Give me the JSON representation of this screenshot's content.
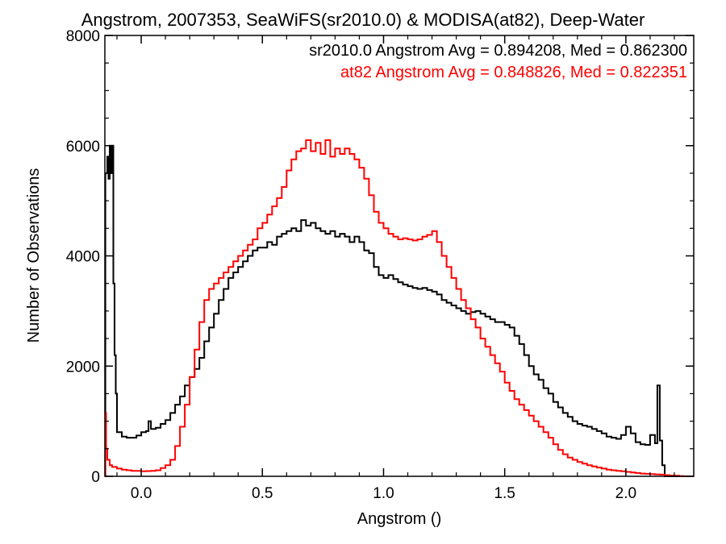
{
  "chart_data": {
    "type": "line",
    "step": true,
    "title": "Angstrom, 2007353, SeaWiFS(sr2010.0) & MODISA(at82), Deep-Water",
    "xlabel": "Angstrom ()",
    "ylabel": "Number of Observations",
    "xlim": [
      -0.15,
      2.28
    ],
    "ylim": [
      0,
      8000
    ],
    "xticks": [
      0.0,
      0.5,
      1.0,
      1.5,
      2.0
    ],
    "xtick_labels": [
      "0.0",
      "0.5",
      "1.0",
      "1.5",
      "2.0"
    ],
    "yticks": [
      0,
      2000,
      4000,
      6000,
      8000
    ],
    "ytick_labels": [
      "0",
      "2000",
      "4000",
      "6000",
      "8000"
    ],
    "grid": false,
    "legend": "top-right",
    "annotations": [
      {
        "text": "sr2010.0 Angstrom Avg = 0.894208, Med = 0.862300",
        "color": "#000000"
      },
      {
        "text": "at82 Angstrom Avg = 0.848826, Med = 0.822351",
        "color": "#ff0000"
      }
    ],
    "series": [
      {
        "name": "sr2010.0",
        "color": "#000000",
        "points": [
          [
            -0.15,
            0
          ],
          [
            -0.148,
            5500
          ],
          [
            -0.14,
            5800
          ],
          [
            -0.135,
            5400
          ],
          [
            -0.13,
            6000
          ],
          [
            -0.125,
            5500
          ],
          [
            -0.12,
            6000
          ],
          [
            -0.115,
            3500
          ],
          [
            -0.11,
            2200
          ],
          [
            -0.105,
            1500
          ],
          [
            -0.1,
            800
          ],
          [
            -0.08,
            720
          ],
          [
            -0.06,
            700
          ],
          [
            -0.04,
            700
          ],
          [
            -0.02,
            740
          ],
          [
            0.0,
            800
          ],
          [
            0.02,
            820
          ],
          [
            0.03,
            1000
          ],
          [
            0.04,
            860
          ],
          [
            0.06,
            880
          ],
          [
            0.08,
            950
          ],
          [
            0.1,
            1020
          ],
          [
            0.12,
            1150
          ],
          [
            0.14,
            1300
          ],
          [
            0.16,
            1450
          ],
          [
            0.18,
            1650
          ],
          [
            0.2,
            1800
          ],
          [
            0.22,
            1950
          ],
          [
            0.24,
            2150
          ],
          [
            0.26,
            2450
          ],
          [
            0.28,
            2700
          ],
          [
            0.3,
            2950
          ],
          [
            0.32,
            3200
          ],
          [
            0.34,
            3400
          ],
          [
            0.36,
            3600
          ],
          [
            0.38,
            3700
          ],
          [
            0.4,
            3800
          ],
          [
            0.42,
            3900
          ],
          [
            0.44,
            4000
          ],
          [
            0.46,
            4100
          ],
          [
            0.48,
            4150
          ],
          [
            0.5,
            4150
          ],
          [
            0.52,
            4250
          ],
          [
            0.54,
            4200
          ],
          [
            0.56,
            4350
          ],
          [
            0.58,
            4400
          ],
          [
            0.6,
            4450
          ],
          [
            0.62,
            4500
          ],
          [
            0.64,
            4450
          ],
          [
            0.66,
            4650
          ],
          [
            0.68,
            4550
          ],
          [
            0.7,
            4600
          ],
          [
            0.72,
            4500
          ],
          [
            0.74,
            4450
          ],
          [
            0.76,
            4400
          ],
          [
            0.78,
            4450
          ],
          [
            0.8,
            4350
          ],
          [
            0.82,
            4400
          ],
          [
            0.84,
            4350
          ],
          [
            0.86,
            4250
          ],
          [
            0.88,
            4350
          ],
          [
            0.9,
            4250
          ],
          [
            0.92,
            4100
          ],
          [
            0.94,
            4050
          ],
          [
            0.96,
            3800
          ],
          [
            0.98,
            3650
          ],
          [
            1.0,
            3600
          ],
          [
            1.02,
            3650
          ],
          [
            1.04,
            3580
          ],
          [
            1.06,
            3520
          ],
          [
            1.08,
            3480
          ],
          [
            1.1,
            3450
          ],
          [
            1.12,
            3420
          ],
          [
            1.14,
            3400
          ],
          [
            1.16,
            3420
          ],
          [
            1.18,
            3380
          ],
          [
            1.2,
            3350
          ],
          [
            1.22,
            3300
          ],
          [
            1.24,
            3200
          ],
          [
            1.26,
            3150
          ],
          [
            1.28,
            3100
          ],
          [
            1.3,
            3050
          ],
          [
            1.32,
            3000
          ],
          [
            1.34,
            2950
          ],
          [
            1.36,
            2980
          ],
          [
            1.38,
            3000
          ],
          [
            1.4,
            2950
          ],
          [
            1.42,
            2900
          ],
          [
            1.44,
            2850
          ],
          [
            1.46,
            2800
          ],
          [
            1.48,
            2800
          ],
          [
            1.5,
            2750
          ],
          [
            1.52,
            2700
          ],
          [
            1.54,
            2550
          ],
          [
            1.56,
            2400
          ],
          [
            1.58,
            2200
          ],
          [
            1.6,
            2000
          ],
          [
            1.62,
            1850
          ],
          [
            1.64,
            1750
          ],
          [
            1.66,
            1600
          ],
          [
            1.68,
            1500
          ],
          [
            1.7,
            1350
          ],
          [
            1.72,
            1250
          ],
          [
            1.74,
            1150
          ],
          [
            1.76,
            1080
          ],
          [
            1.78,
            1000
          ],
          [
            1.8,
            950
          ],
          [
            1.82,
            920
          ],
          [
            1.84,
            900
          ],
          [
            1.86,
            860
          ],
          [
            1.88,
            820
          ],
          [
            1.9,
            780
          ],
          [
            1.92,
            720
          ],
          [
            1.94,
            700
          ],
          [
            1.96,
            680
          ],
          [
            1.98,
            750
          ],
          [
            2.0,
            900
          ],
          [
            2.02,
            780
          ],
          [
            2.04,
            620
          ],
          [
            2.06,
            580
          ],
          [
            2.08,
            570
          ],
          [
            2.1,
            750
          ],
          [
            2.12,
            600
          ],
          [
            2.13,
            1650
          ],
          [
            2.14,
            650
          ],
          [
            2.15,
            200
          ],
          [
            2.16,
            0
          ],
          [
            2.28,
            0
          ]
        ]
      },
      {
        "name": "at82",
        "color": "#ff0000",
        "points": [
          [
            -0.15,
            0
          ],
          [
            -0.148,
            1150
          ],
          [
            -0.145,
            500
          ],
          [
            -0.14,
            300
          ],
          [
            -0.13,
            200
          ],
          [
            -0.12,
            170
          ],
          [
            -0.1,
            140
          ],
          [
            -0.08,
            120
          ],
          [
            -0.06,
            110
          ],
          [
            -0.04,
            100
          ],
          [
            -0.02,
            100
          ],
          [
            0.0,
            90
          ],
          [
            0.02,
            95
          ],
          [
            0.04,
            100
          ],
          [
            0.06,
            110
          ],
          [
            0.08,
            150
          ],
          [
            0.1,
            200
          ],
          [
            0.12,
            300
          ],
          [
            0.14,
            550
          ],
          [
            0.16,
            900
          ],
          [
            0.18,
            1300
          ],
          [
            0.2,
            1800
          ],
          [
            0.22,
            2300
          ],
          [
            0.24,
            2800
          ],
          [
            0.26,
            3200
          ],
          [
            0.28,
            3400
          ],
          [
            0.3,
            3500
          ],
          [
            0.32,
            3600
          ],
          [
            0.34,
            3700
          ],
          [
            0.36,
            3800
          ],
          [
            0.38,
            3900
          ],
          [
            0.4,
            4000
          ],
          [
            0.42,
            4100
          ],
          [
            0.44,
            4200
          ],
          [
            0.46,
            4300
          ],
          [
            0.48,
            4500
          ],
          [
            0.5,
            4600
          ],
          [
            0.52,
            4750
          ],
          [
            0.54,
            4900
          ],
          [
            0.56,
            5050
          ],
          [
            0.58,
            5250
          ],
          [
            0.6,
            5550
          ],
          [
            0.62,
            5750
          ],
          [
            0.64,
            5900
          ],
          [
            0.66,
            5950
          ],
          [
            0.68,
            6100
          ],
          [
            0.7,
            5900
          ],
          [
            0.72,
            6050
          ],
          [
            0.74,
            5850
          ],
          [
            0.76,
            6100
          ],
          [
            0.78,
            5800
          ],
          [
            0.8,
            5950
          ],
          [
            0.82,
            5850
          ],
          [
            0.84,
            5950
          ],
          [
            0.86,
            5850
          ],
          [
            0.88,
            5750
          ],
          [
            0.9,
            5600
          ],
          [
            0.92,
            5400
          ],
          [
            0.94,
            5100
          ],
          [
            0.96,
            4800
          ],
          [
            0.98,
            4600
          ],
          [
            1.0,
            4500
          ],
          [
            1.02,
            4400
          ],
          [
            1.04,
            4350
          ],
          [
            1.06,
            4300
          ],
          [
            1.08,
            4320
          ],
          [
            1.1,
            4300
          ],
          [
            1.12,
            4280
          ],
          [
            1.14,
            4300
          ],
          [
            1.16,
            4350
          ],
          [
            1.18,
            4380
          ],
          [
            1.2,
            4450
          ],
          [
            1.22,
            4250
          ],
          [
            1.24,
            4000
          ],
          [
            1.26,
            3800
          ],
          [
            1.28,
            3600
          ],
          [
            1.3,
            3400
          ],
          [
            1.32,
            3200
          ],
          [
            1.34,
            3050
          ],
          [
            1.36,
            2850
          ],
          [
            1.38,
            2700
          ],
          [
            1.4,
            2500
          ],
          [
            1.42,
            2350
          ],
          [
            1.44,
            2200
          ],
          [
            1.46,
            2050
          ],
          [
            1.48,
            1900
          ],
          [
            1.5,
            1700
          ],
          [
            1.52,
            1550
          ],
          [
            1.54,
            1400
          ],
          [
            1.56,
            1300
          ],
          [
            1.58,
            1200
          ],
          [
            1.6,
            1100
          ],
          [
            1.62,
            1000
          ],
          [
            1.64,
            900
          ],
          [
            1.66,
            800
          ],
          [
            1.68,
            700
          ],
          [
            1.7,
            580
          ],
          [
            1.72,
            480
          ],
          [
            1.74,
            400
          ],
          [
            1.76,
            340
          ],
          [
            1.78,
            300
          ],
          [
            1.8,
            260
          ],
          [
            1.82,
            230
          ],
          [
            1.84,
            200
          ],
          [
            1.86,
            180
          ],
          [
            1.88,
            160
          ],
          [
            1.9,
            140
          ],
          [
            1.92,
            120
          ],
          [
            1.94,
            110
          ],
          [
            1.96,
            100
          ],
          [
            1.98,
            90
          ],
          [
            2.0,
            80
          ],
          [
            2.02,
            70
          ],
          [
            2.04,
            60
          ],
          [
            2.06,
            50
          ],
          [
            2.08,
            45
          ],
          [
            2.1,
            40
          ],
          [
            2.12,
            35
          ],
          [
            2.14,
            30
          ],
          [
            2.16,
            20
          ],
          [
            2.18,
            15
          ],
          [
            2.2,
            10
          ],
          [
            2.22,
            5
          ],
          [
            2.24,
            0
          ],
          [
            2.28,
            0
          ]
        ]
      }
    ]
  }
}
